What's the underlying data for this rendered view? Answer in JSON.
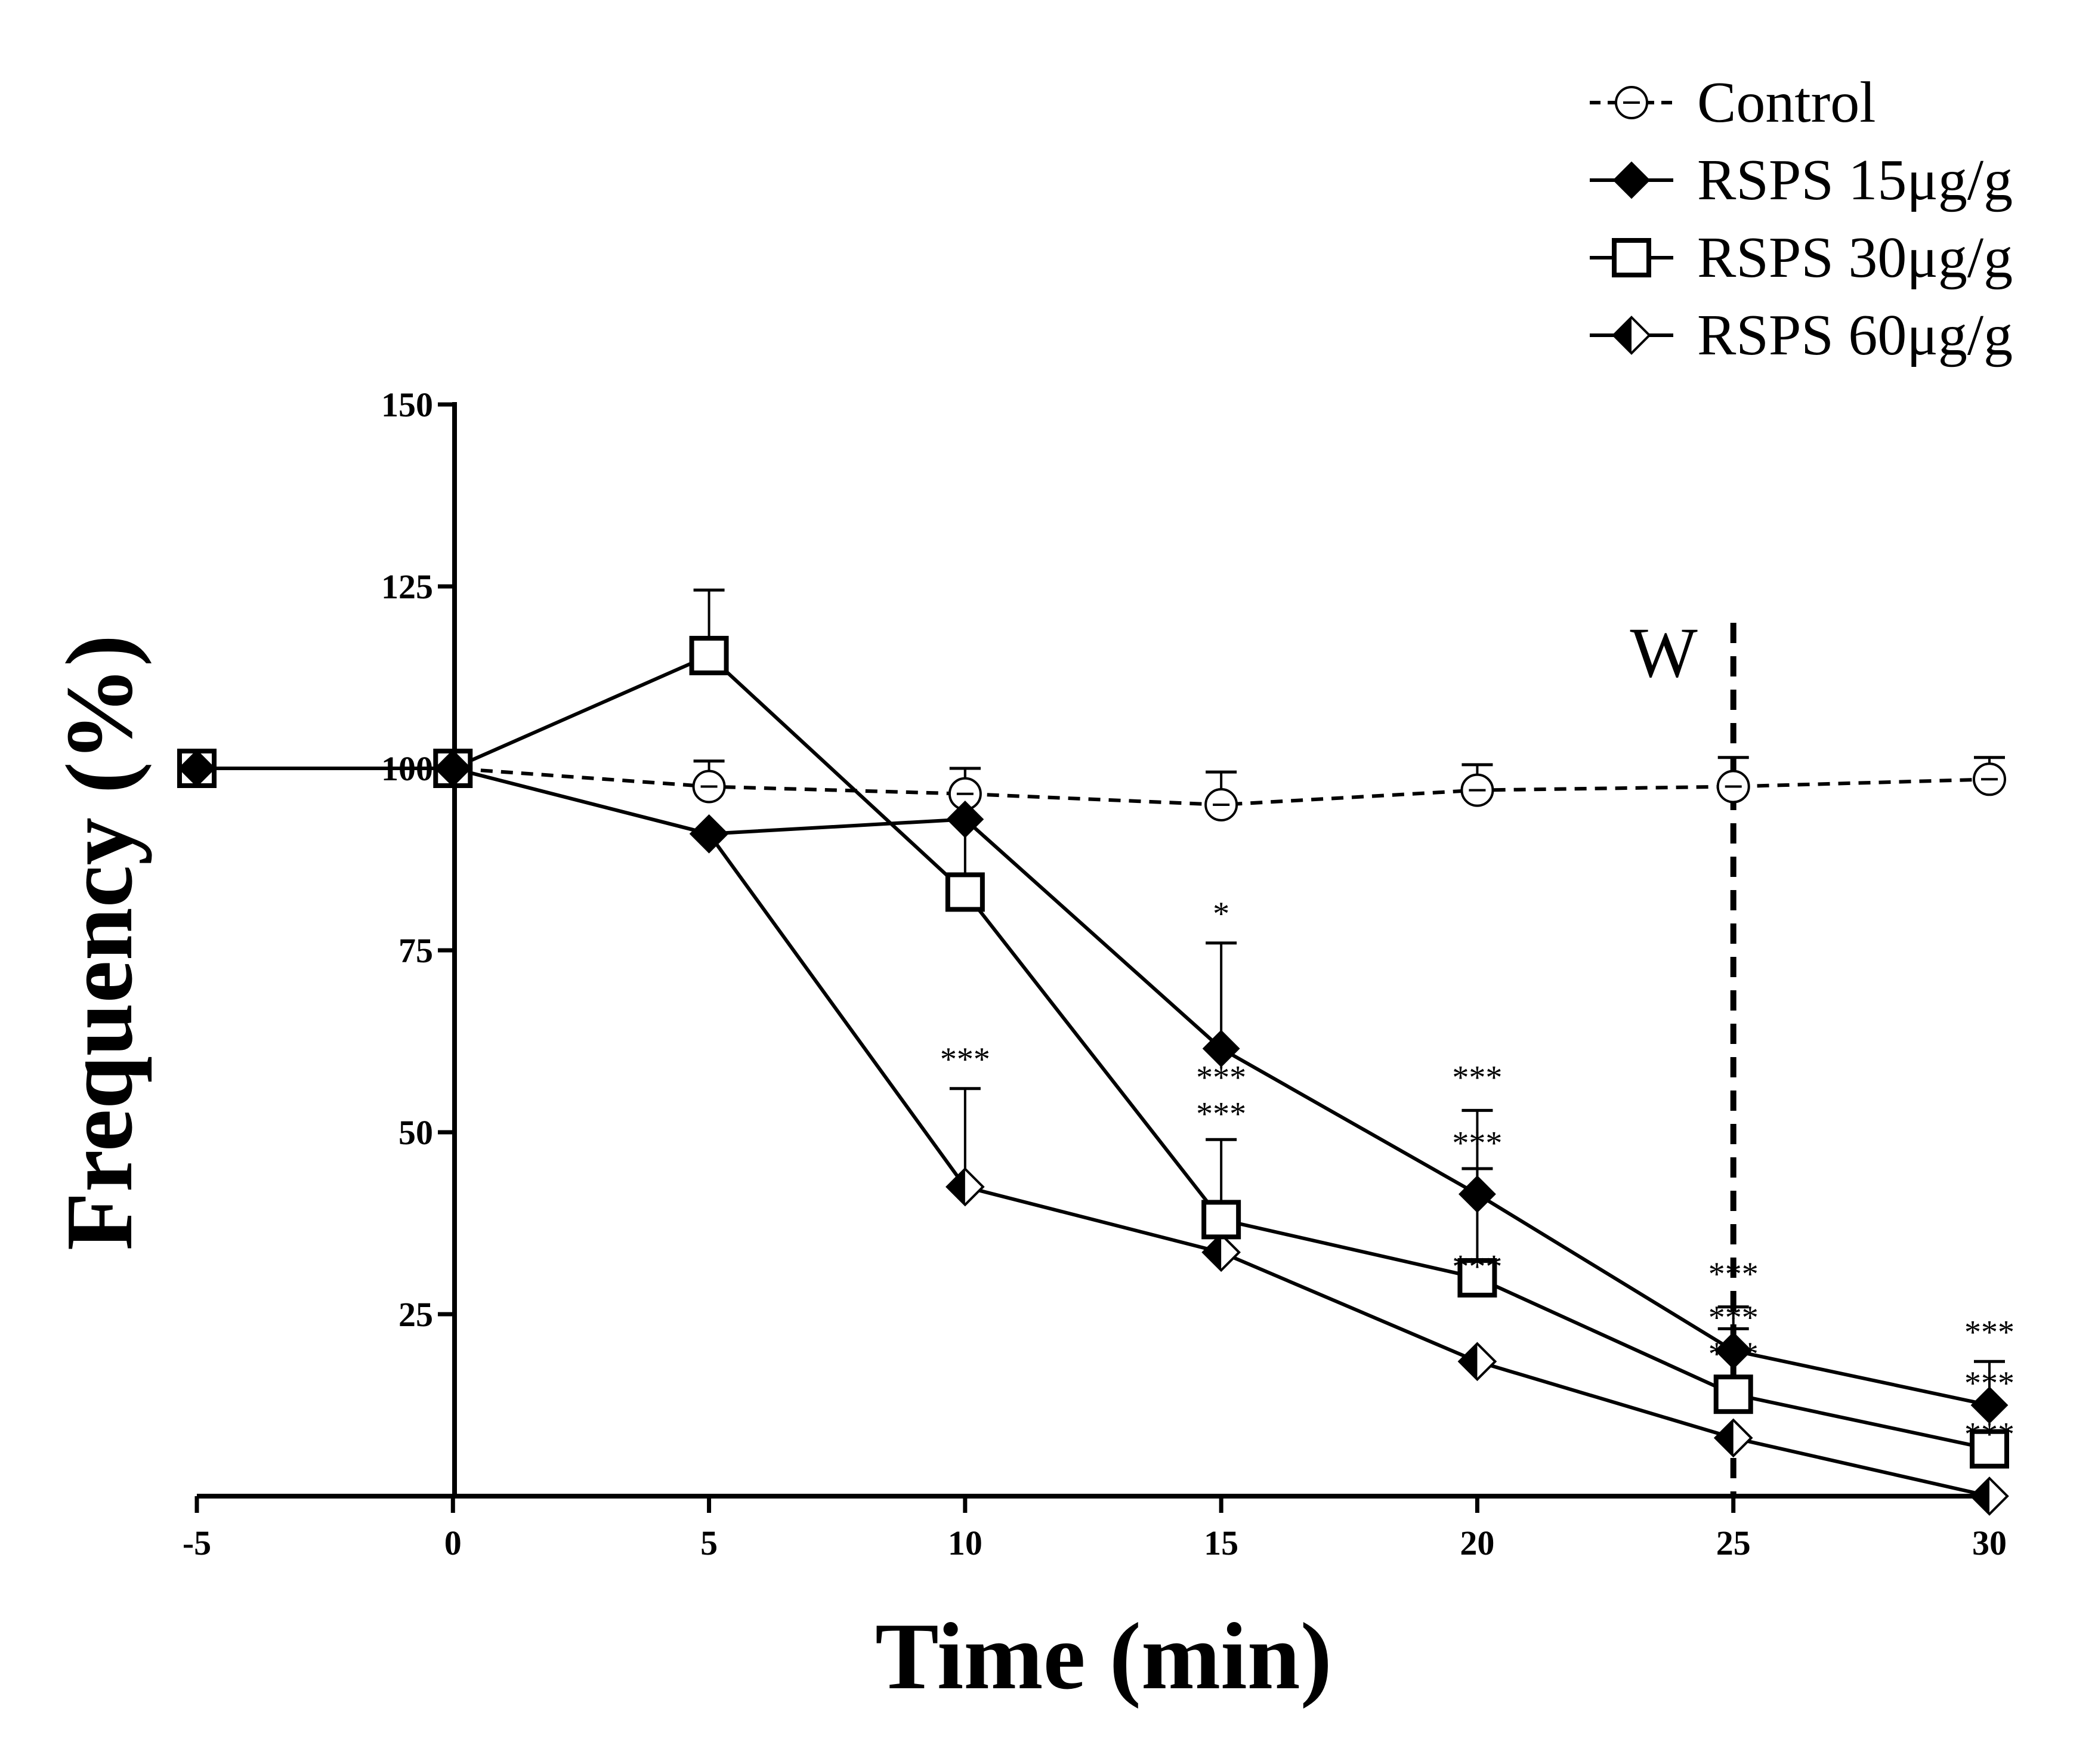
{
  "chart_data": {
    "type": "line",
    "title": "",
    "xlabel": "Time (min)",
    "ylabel": "Frequency (%)",
    "xlim": [
      -5,
      30
    ],
    "ylim": [
      0,
      150
    ],
    "x_ticks": [
      "-5",
      "0",
      "5",
      "10",
      "15",
      "20",
      "25",
      "30"
    ],
    "y_ticks": [
      "25",
      "50",
      "75",
      "100",
      "125",
      "150"
    ],
    "legend_position": "top-right",
    "grid": false,
    "series": [
      {
        "name": "Control",
        "style": "dashed",
        "marker": "circle-dash",
        "x": [
          -5,
          0,
          5,
          10,
          15,
          20,
          25,
          30
        ],
        "values": [
          100,
          100,
          97.5,
          96.5,
          95,
          97,
          97.5,
          98.5
        ],
        "error": [
          null,
          null,
          3.5,
          3.5,
          4.5,
          3.5,
          4,
          3
        ]
      },
      {
        "name": "RSPS 15μg/g",
        "style": "solid",
        "marker": "filled-diamond",
        "x": [
          -5,
          0,
          5,
          10,
          15,
          20,
          25,
          30
        ],
        "values": [
          100,
          100,
          91,
          93,
          61.5,
          41.5,
          20,
          12.5
        ],
        "error": [
          null,
          null,
          null,
          null,
          14.5,
          11.5,
          6,
          6
        ]
      },
      {
        "name": "RSPS 30μg/g",
        "style": "solid",
        "marker": "open-square",
        "x": [
          -5,
          0,
          5,
          10,
          15,
          20,
          25,
          30
        ],
        "values": [
          100,
          100,
          115.5,
          83,
          38,
          30,
          14,
          6.5
        ],
        "error": [
          null,
          null,
          9,
          17,
          11,
          15,
          9,
          null
        ]
      },
      {
        "name": "RSPS 60μg/g",
        "style": "solid",
        "marker": "half-diamond",
        "x": [
          -5,
          0,
          5,
          10,
          15,
          20,
          25,
          30
        ],
        "values": [
          100,
          100,
          91,
          42.5,
          33.5,
          18.5,
          8,
          0
        ],
        "error": [
          null,
          null,
          null,
          13.5,
          null,
          null,
          null,
          null
        ]
      }
    ],
    "significance": [
      {
        "x": 15,
        "y": 80,
        "label": "*"
      },
      {
        "x": 10,
        "y": 60,
        "label": "***"
      },
      {
        "x": 15,
        "y": 57.5,
        "label": "***"
      },
      {
        "x": 15,
        "y": 52.5,
        "label": "***"
      },
      {
        "x": 20,
        "y": 57.5,
        "label": "***"
      },
      {
        "x": 20,
        "y": 48.5,
        "label": "***"
      },
      {
        "x": 20,
        "y": 31.5,
        "label": "***"
      },
      {
        "x": 25,
        "y": 30.5,
        "label": "***"
      },
      {
        "x": 25,
        "y": 24.5,
        "label": "***"
      },
      {
        "x": 25,
        "y": 19.5,
        "label": "***"
      },
      {
        "x": 30,
        "y": 22.5,
        "label": "***"
      },
      {
        "x": 30,
        "y": 15.5,
        "label": "***"
      },
      {
        "x": 30,
        "y": 8.5,
        "label": "***"
      }
    ],
    "annotations": [
      {
        "label": "W",
        "x": 25,
        "type": "vertical-dashed-line",
        "y_top": 120
      }
    ]
  }
}
